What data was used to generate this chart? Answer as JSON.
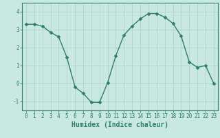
{
  "x": [
    0,
    1,
    2,
    3,
    4,
    5,
    6,
    7,
    8,
    9,
    10,
    11,
    12,
    13,
    14,
    15,
    16,
    17,
    18,
    19,
    20,
    21,
    22,
    23
  ],
  "y": [
    3.3,
    3.3,
    3.2,
    2.85,
    2.6,
    1.45,
    -0.2,
    -0.55,
    -1.05,
    -1.05,
    0.05,
    1.55,
    2.7,
    3.2,
    3.6,
    3.9,
    3.9,
    3.7,
    3.35,
    2.65,
    1.2,
    0.9,
    1.0,
    0.0
  ],
  "line_color": "#2e7d6e",
  "marker": "D",
  "marker_size": 2.5,
  "bg_color": "#c8e8e0",
  "grid_color": "#afd4cc",
  "xlabel": "Humidex (Indice chaleur)",
  "xlabel_fontsize": 7,
  "yticks": [
    -1,
    0,
    1,
    2,
    3,
    4
  ],
  "xtick_labels": [
    "0",
    "1",
    "2",
    "3",
    "4",
    "5",
    "6",
    "7",
    "8",
    "9",
    "10",
    "11",
    "12",
    "13",
    "14",
    "15",
    "16",
    "17",
    "18",
    "19",
    "20",
    "21",
    "22",
    "23"
  ],
  "ylim": [
    -1.5,
    4.5
  ],
  "xlim": [
    -0.5,
    23.5
  ],
  "tick_fontsize": 5.5,
  "spine_color": "#2e7d6e",
  "line_width": 1.0
}
